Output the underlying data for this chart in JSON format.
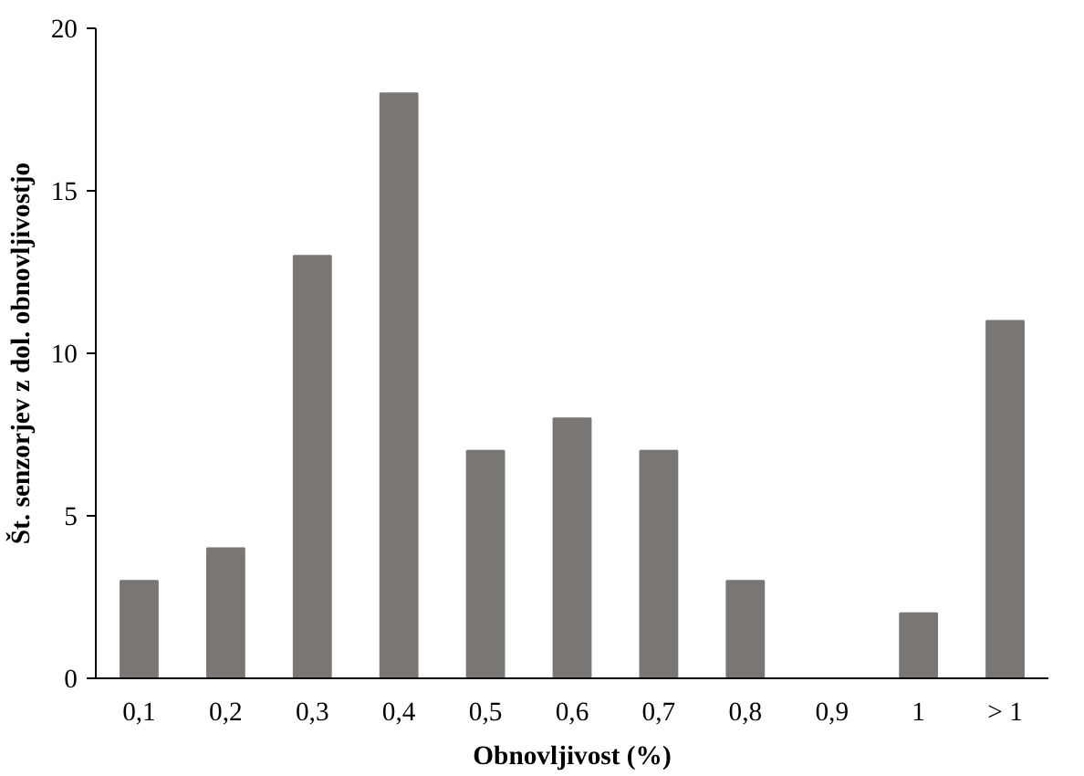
{
  "chart_data": {
    "type": "bar",
    "xlabel": "Obnovljivost (%)",
    "ylabel": "Št. senzorjev z dol. obnovljivostjo",
    "categories": [
      "0,1",
      "0,2",
      "0,3",
      "0,4",
      "0,5",
      "0,6",
      "0,7",
      "0,8",
      "0,9",
      "1",
      "> 1"
    ],
    "values": [
      3,
      4,
      13,
      18,
      7,
      8,
      7,
      3,
      0,
      2,
      11
    ],
    "color": "#7a7674",
    "ylim": [
      0,
      20
    ],
    "yticks": [
      0,
      5,
      10,
      15,
      20
    ],
    "grid": false
  }
}
